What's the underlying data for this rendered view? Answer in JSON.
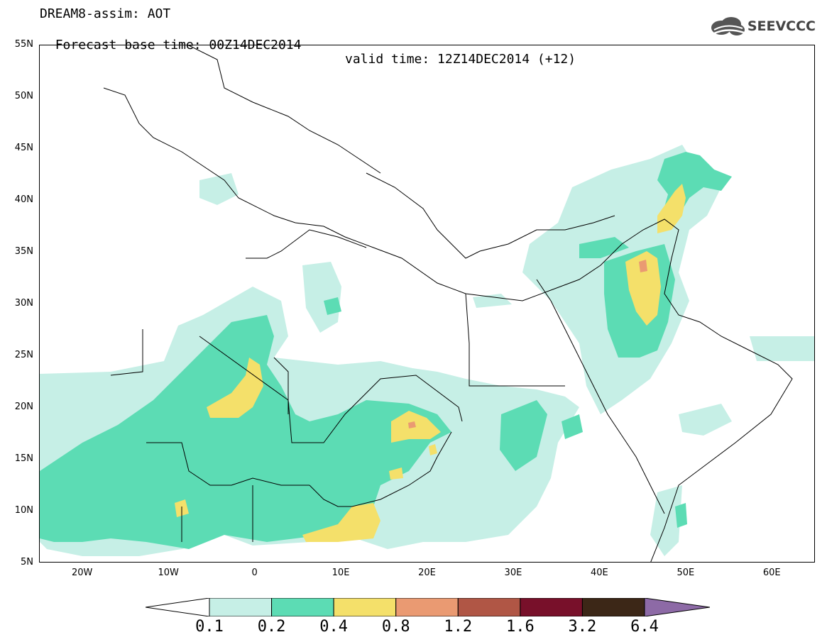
{
  "title": {
    "line1": "DREAM8-assim: AOT",
    "line2_base": "Forecast base time: 00Z14DEC2014",
    "line2_valid": "valid time: 12Z14DEC2014 (+12)"
  },
  "logo": {
    "text": "SEEVCCC",
    "icon": "cloud-logo-icon"
  },
  "map": {
    "lon_range": [
      -25,
      65
    ],
    "lat_range": [
      5,
      55
    ],
    "lat_ticks": [
      "55N",
      "50N",
      "45N",
      "40N",
      "35N",
      "30N",
      "25N",
      "20N",
      "15N",
      "10N",
      "5N"
    ],
    "lon_ticks": [
      "20W",
      "10W",
      "0",
      "10E",
      "20E",
      "30E",
      "40E",
      "50E",
      "60E"
    ]
  },
  "colorbar": {
    "labels": [
      "0.1",
      "0.2",
      "0.4",
      "0.8",
      "1.2",
      "1.6",
      "3.2",
      "6.4"
    ],
    "colors": [
      "#ffffff",
      "#c6efe6",
      "#5cdcb4",
      "#f4e06a",
      "#ea9a72",
      "#b05645",
      "#78102a",
      "#3c2717",
      "#8d6aa6"
    ]
  }
}
